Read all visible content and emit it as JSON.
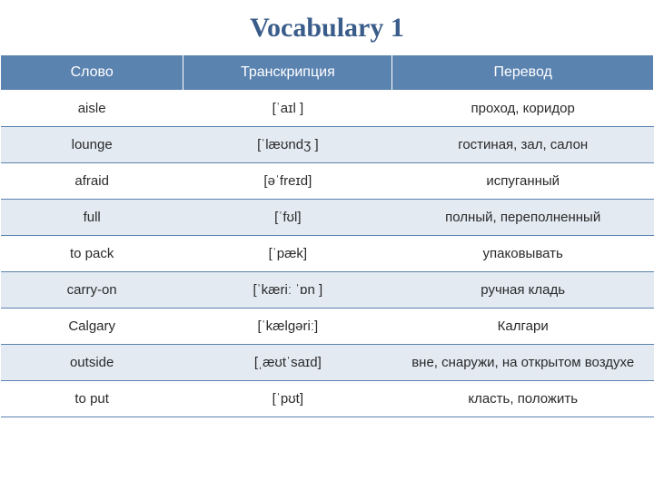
{
  "title": "Vocabulary 1",
  "columns": [
    "Слово",
    "Транскрипция",
    "Перевод"
  ],
  "rows": [
    {
      "word": "aisle",
      "transcription": "[ˈaɪl ]",
      "translation": "проход, коридор"
    },
    {
      "word": "lounge",
      "transcription": "[ˈlæʊndʒ ]",
      "translation": "гостиная, зал, салон"
    },
    {
      "word": "afraid",
      "transcription": "[əˈfreɪd]",
      "translation": "испуганный"
    },
    {
      "word": "full",
      "transcription": "[ˈfʊl]",
      "translation": "полный, переполненный"
    },
    {
      "word": "to pack",
      "transcription": "[ˈpæk]",
      "translation": "упаковывать"
    },
    {
      "word": "carry-on",
      "transcription": "[ˈkæriː ˈɒn ]",
      "translation": "ручная кладь"
    },
    {
      "word": "Calgary",
      "transcription": "[ˈkælɡəriː]",
      "translation": "Калгари"
    },
    {
      "word": "outside",
      "transcription": "[ˌæʊtˈsaɪd]",
      "translation": "вне, снаружи, на открытом воздухе"
    },
    {
      "word": "to put",
      "transcription": "[ˈpʊt]",
      "translation": "класть, положить"
    }
  ],
  "colors": {
    "title_color": "#3a5c8a",
    "header_bg": "#5b83b0",
    "header_text": "#ffffff",
    "row_alt_bg": "#e3eaf2",
    "border_color": "#5b83b0",
    "text_color": "#2a2a2a"
  },
  "typography": {
    "title_fontsize": 30,
    "header_fontsize": 16,
    "cell_fontsize": 15
  }
}
